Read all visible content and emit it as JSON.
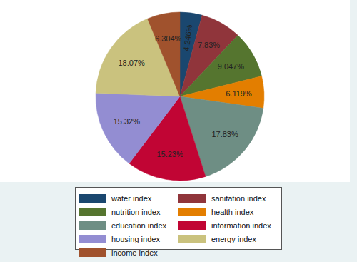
{
  "chart_data": {
    "type": "pie",
    "categories": [
      "water index",
      "sanitation index",
      "nutrition index",
      "health index",
      "education index",
      "information index",
      "housing index",
      "energy index",
      "income index"
    ],
    "values": [
      4.246,
      7.83,
      9.047,
      6.119,
      17.83,
      15.23,
      15.32,
      18.07,
      6.304
    ],
    "value_labels": [
      "4.246%",
      "7.83%",
      "9.047%",
      "6.119%",
      "17.83%",
      "15.23%",
      "15.32%",
      "18.07%",
      "6.304%"
    ],
    "colors": [
      "#1a476f",
      "#90353b",
      "#55752f",
      "#e37e00",
      "#6e8e84",
      "#c10534",
      "#938dd2",
      "#cac27e",
      "#a0522d"
    ],
    "data_labels": true,
    "legend": "bottom"
  }
}
